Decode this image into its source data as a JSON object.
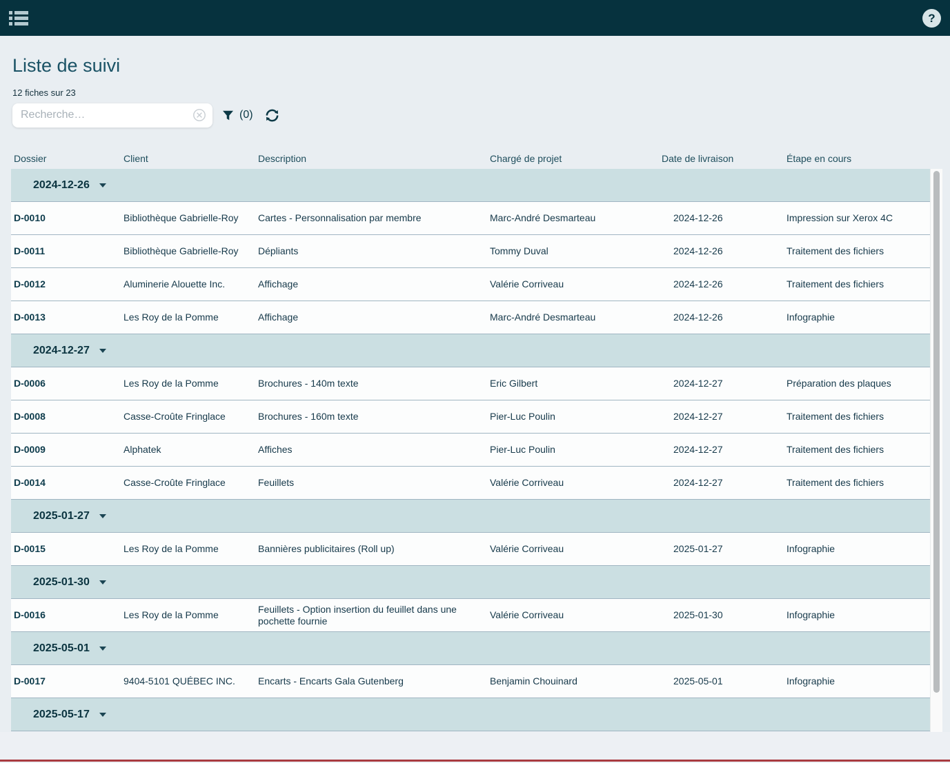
{
  "topbar": {
    "help_glyph": "?"
  },
  "page": {
    "title": "Liste de suivi",
    "count_text": "12 fiches sur 23"
  },
  "toolbar": {
    "search_placeholder": "Recherche…",
    "search_value": "",
    "filter_count": "(0)"
  },
  "colors": {
    "topbar_bg": "#06323E",
    "title": "#1A5265",
    "group_band_bg": "#CBDFE2",
    "row_border": "#A0B5C2",
    "bottom_line": "#A93A40",
    "icon": "#0C3946"
  },
  "table": {
    "columns": [
      "Dossier",
      "Client",
      "Description",
      "Chargé de projet",
      "Date de livraison",
      "Étape en cours"
    ],
    "groups": [
      {
        "date": "2024-12-26",
        "rows": [
          {
            "dossier": "D-0010",
            "client": "Bibliothèque Gabrielle-Roy",
            "description": "Cartes - Personnalisation par membre",
            "charge": "Marc-André Desmarteau",
            "date": "2024-12-26",
            "etape": "Impression sur Xerox 4C"
          },
          {
            "dossier": "D-0011",
            "client": "Bibliothèque Gabrielle-Roy",
            "description": "Dépliants",
            "charge": "Tommy Duval",
            "date": "2024-12-26",
            "etape": "Traitement des fichiers"
          },
          {
            "dossier": "D-0012",
            "client": "Aluminerie Alouette Inc.",
            "description": "Affichage",
            "charge": "Valérie Corriveau",
            "date": "2024-12-26",
            "etape": "Traitement des fichiers"
          },
          {
            "dossier": "D-0013",
            "client": "Les Roy de la Pomme",
            "description": "Affichage",
            "charge": "Marc-André Desmarteau",
            "date": "2024-12-26",
            "etape": "Infographie"
          }
        ]
      },
      {
        "date": "2024-12-27",
        "rows": [
          {
            "dossier": "D-0006",
            "client": "Les Roy de la Pomme",
            "description": "Brochures - 140m texte",
            "charge": "Eric Gilbert",
            "date": "2024-12-27",
            "etape": "Préparation des plaques"
          },
          {
            "dossier": "D-0008",
            "client": "Casse-Croûte Fringlace",
            "description": "Brochures - 160m texte",
            "charge": "Pier-Luc Poulin",
            "date": "2024-12-27",
            "etape": "Traitement des fichiers"
          },
          {
            "dossier": "D-0009",
            "client": "Alphatek",
            "description": "Affiches",
            "charge": "Pier-Luc Poulin",
            "date": "2024-12-27",
            "etape": "Traitement des fichiers"
          },
          {
            "dossier": "D-0014",
            "client": "Casse-Croûte Fringlace",
            "description": "Feuillets",
            "charge": "Valérie Corriveau",
            "date": "2024-12-27",
            "etape": "Traitement des fichiers"
          }
        ]
      },
      {
        "date": "2025-01-27",
        "rows": [
          {
            "dossier": "D-0015",
            "client": "Les Roy de la Pomme",
            "description": "Bannières publicitaires (Roll up)",
            "charge": "Valérie Corriveau",
            "date": "2025-01-27",
            "etape": "Infographie"
          }
        ]
      },
      {
        "date": "2025-01-30",
        "rows": [
          {
            "dossier": "D-0016",
            "client": "Les Roy de la Pomme",
            "description": "Feuillets - Option insertion du feuillet dans une pochette fournie",
            "charge": "Valérie Corriveau",
            "date": "2025-01-30",
            "etape": "Infographie"
          }
        ]
      },
      {
        "date": "2025-05-01",
        "rows": [
          {
            "dossier": "D-0017",
            "client": "9404-5101 QUÉBEC INC.",
            "description": "Encarts - Encarts Gala Gutenberg",
            "charge": "Benjamin Chouinard",
            "date": "2025-05-01",
            "etape": "Infographie"
          }
        ]
      },
      {
        "date": "2025-05-17",
        "rows": []
      }
    ]
  }
}
